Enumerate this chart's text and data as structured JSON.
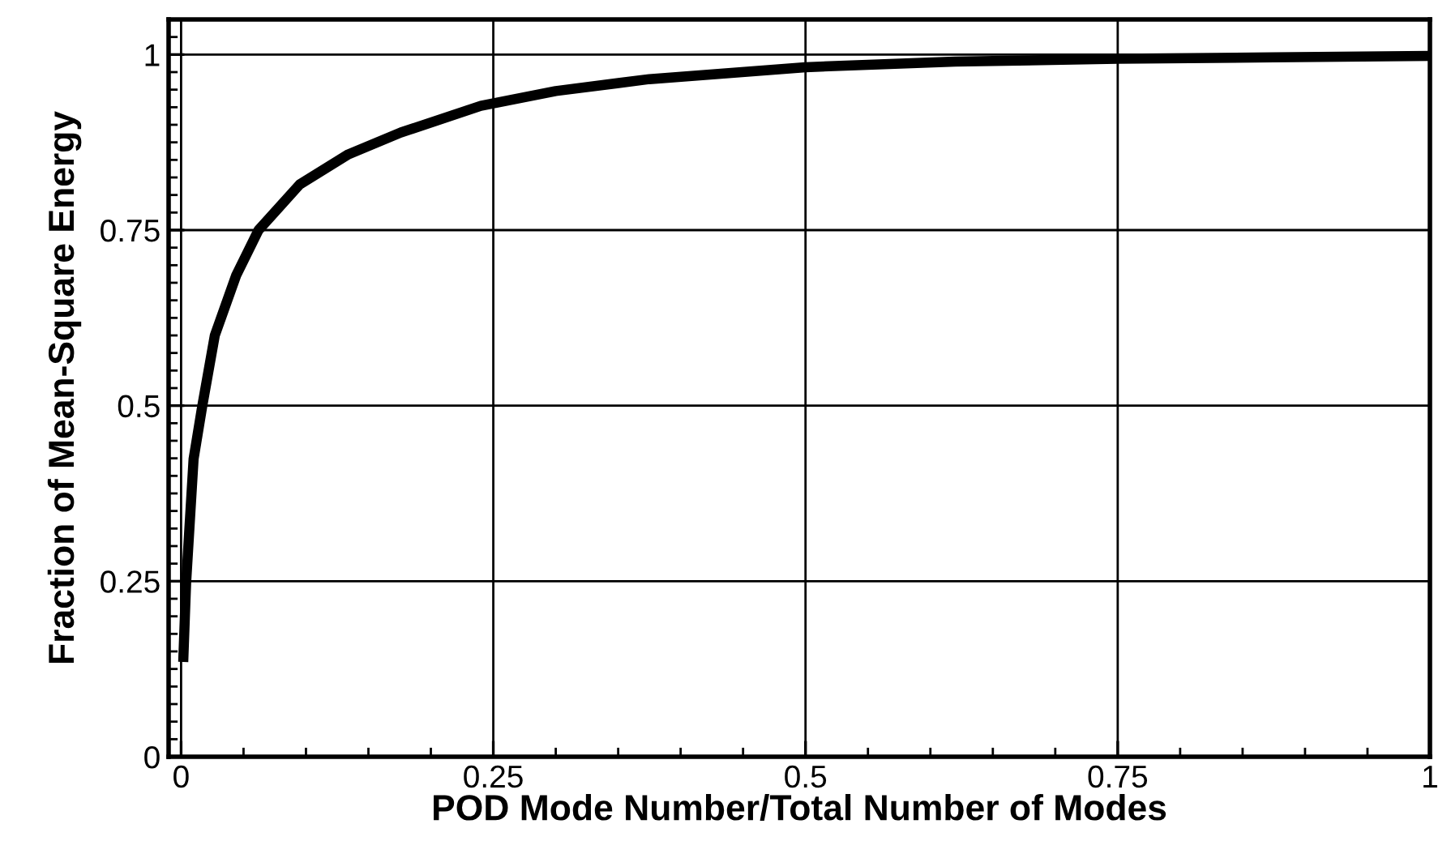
{
  "chart_data": {
    "type": "line",
    "xlabel": "POD Mode Number/Total Number of Modes",
    "ylabel": "Fraction of Mean-Square Energy",
    "x": [
      0.0017,
      0.004,
      0.01,
      0.017,
      0.027,
      0.044,
      0.062,
      0.095,
      0.134,
      0.176,
      0.24,
      0.3,
      0.375,
      0.5,
      0.62,
      0.75,
      0.875,
      1.0
    ],
    "series": [
      {
        "color": "#000000",
        "values": [
          0.135,
          0.247,
          0.424,
          0.5,
          0.6,
          0.685,
          0.75,
          0.815,
          0.858,
          0.889,
          0.927,
          0.948,
          0.965,
          0.982,
          0.99,
          0.994,
          0.996,
          0.998
        ]
      }
    ],
    "xlim": [
      -0.01,
      1.0
    ],
    "ylim": [
      0,
      1.05
    ],
    "xticks": [
      0,
      0.25,
      0.5,
      0.75,
      1
    ],
    "yticks": [
      0,
      0.25,
      0.5,
      0.75,
      1
    ],
    "grid": true,
    "legend": false,
    "marker": "none",
    "line_style": "solid"
  }
}
